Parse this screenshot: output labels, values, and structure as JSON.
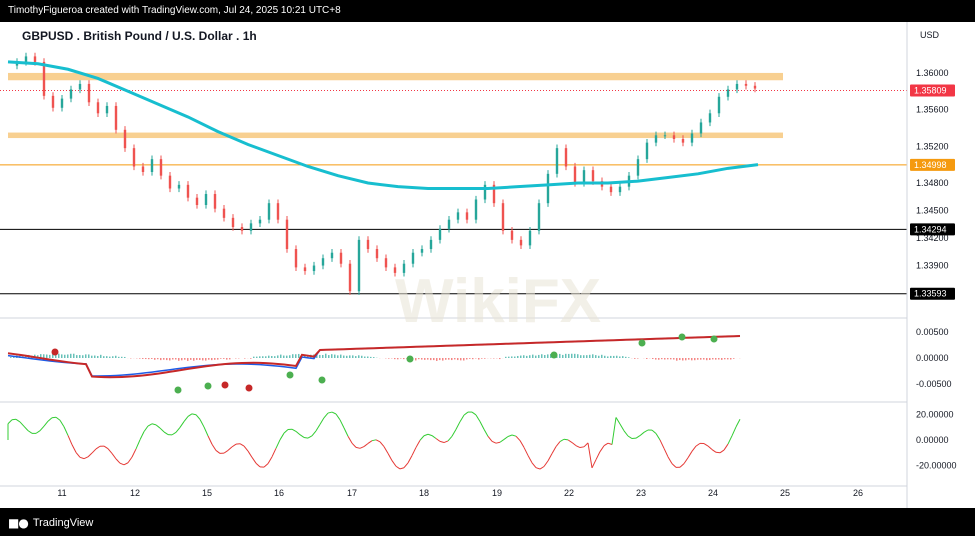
{
  "header": {
    "credit": "TimothyFigueroa created with TradingView.com, Jul 24, 2025 10:21 UTC+8"
  },
  "footer": {
    "brand": "TradingView"
  },
  "watermark": "WikiFX",
  "chart_data": {
    "type": "line",
    "title": "GBPUSD . British Pound / U.S. Dollar . 1h",
    "currency": "USD",
    "x_ticks": [
      "11",
      "12",
      "15",
      "16",
      "17",
      "18",
      "19",
      "22",
      "23",
      "24",
      "25",
      "26"
    ],
    "y_ticks": [
      "1.36000",
      "1.35600",
      "1.35200",
      "1.34800",
      "1.34500",
      "1.34200",
      "1.33900"
    ],
    "ylim": [
      1.3335,
      1.3625
    ],
    "price_x": [
      0,
      3,
      6,
      9,
      12,
      15,
      18,
      21,
      24,
      27,
      30,
      33,
      36,
      39,
      42,
      45,
      48,
      51,
      54,
      57,
      60,
      63,
      66,
      69,
      72,
      75,
      78,
      81,
      84,
      87,
      90,
      93,
      96,
      99,
      102,
      105,
      108,
      111,
      114,
      117,
      120,
      123,
      126,
      129,
      132,
      135,
      138,
      141,
      144,
      147,
      150,
      153,
      156,
      159,
      162,
      165,
      168,
      171,
      174,
      177,
      180,
      183,
      186,
      189,
      192,
      195,
      198,
      201,
      204
    ],
    "price_y": [
      1.3608,
      1.3612,
      1.3618,
      1.3612,
      1.3575,
      1.3562,
      1.3572,
      1.3582,
      1.3588,
      1.3568,
      1.3556,
      1.3564,
      1.3538,
      1.3518,
      1.3498,
      1.3492,
      1.3506,
      1.3488,
      1.3474,
      1.3478,
      1.3464,
      1.3456,
      1.3468,
      1.3452,
      1.3442,
      1.3432,
      1.3428,
      1.3436,
      1.344,
      1.3458,
      1.344,
      1.3408,
      1.3388,
      1.3384,
      1.339,
      1.3398,
      1.3404,
      1.3392,
      1.3362,
      1.3418,
      1.3408,
      1.3398,
      1.3388,
      1.3382,
      1.3392,
      1.3404,
      1.3408,
      1.3418,
      1.343,
      1.344,
      1.3448,
      1.344,
      1.3462,
      1.3478,
      1.3458,
      1.3428,
      1.3418,
      1.3412,
      1.3428,
      1.3458,
      1.349,
      1.3518,
      1.3498,
      1.348,
      1.3494,
      1.3482,
      1.3476,
      1.347,
      1.3476
    ],
    "price_x2": [
      207,
      210,
      213,
      216,
      219,
      222,
      225,
      228,
      231,
      234,
      237,
      240,
      243,
      246,
      249
    ],
    "price_y2": [
      1.3488,
      1.3506,
      1.3524,
      1.3532,
      1.3532,
      1.3528,
      1.3524,
      1.3534,
      1.3546,
      1.3556,
      1.3574,
      1.3582,
      1.3588,
      1.3586,
      1.3583
    ],
    "ma_x": [
      0,
      10,
      20,
      30,
      40,
      50,
      60,
      70,
      80,
      90,
      100,
      110,
      120,
      130,
      140,
      150,
      160,
      170,
      180,
      190,
      200,
      210,
      220,
      230,
      240,
      250
    ],
    "ma_y": [
      1.3612,
      1.361,
      1.3604,
      1.3594,
      1.358,
      1.3566,
      1.3552,
      1.3536,
      1.3522,
      1.351,
      1.3498,
      1.3488,
      1.348,
      1.3476,
      1.3474,
      1.3474,
      1.3474,
      1.3476,
      1.3478,
      1.348,
      1.348,
      1.3482,
      1.3486,
      1.349,
      1.3496,
      1.35
    ],
    "zones": [
      {
        "from": 1.3592,
        "to": 1.36,
        "color": "#F7C87E"
      },
      {
        "from": 1.3529,
        "to": 1.3535,
        "color": "#F7C87E"
      }
    ],
    "levels": [
      {
        "value": 1.34998,
        "label": "1.34998",
        "color": "#F59A0F",
        "text_color": "#131722"
      },
      {
        "value": 1.34294,
        "label": "1.34294",
        "color": "#000000",
        "text_color": "#ffffff"
      },
      {
        "value": 1.33593,
        "label": "1.33593",
        "color": "#000000",
        "text_color": "#ffffff"
      }
    ],
    "current_price": {
      "value": 1.35809,
      "label": "1.35809",
      "color": "#F23645"
    },
    "macd_ticks": [
      "0.00500",
      "0.00000",
      "-0.00500"
    ],
    "rsi_ticks": [
      "20.00000",
      "0.00000",
      "-20.00000"
    ],
    "colors": {
      "up": "#26A69A",
      "down": "#EF5350",
      "ma": "#17BECF",
      "macd_fast": "#1E5CE6",
      "macd_signal_up": "#4CAF50",
      "macd_signal_down": "#C62828",
      "osc_up": "#33CC33",
      "osc_down": "#E53935"
    }
  }
}
